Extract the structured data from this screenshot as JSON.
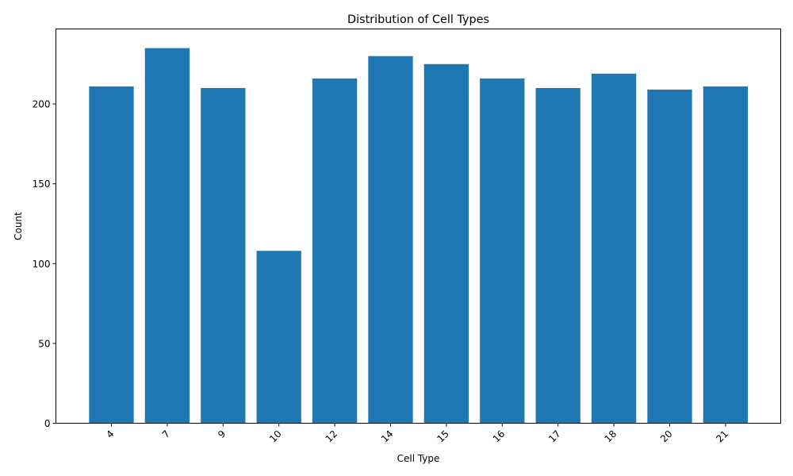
{
  "chart_data": {
    "type": "bar",
    "title": "Distribution of Cell Types",
    "xlabel": "Cell Type",
    "ylabel": "Count",
    "categories": [
      "4",
      "7",
      "9",
      "10",
      "12",
      "14",
      "15",
      "16",
      "17",
      "18",
      "20",
      "21"
    ],
    "values": [
      211,
      235,
      210,
      108,
      216,
      230,
      225,
      216,
      210,
      219,
      209,
      211
    ],
    "ylim": [
      0,
      247
    ],
    "yticks": [
      "0",
      "50",
      "100",
      "150",
      "200"
    ],
    "x_tick_rotation_deg": 45,
    "grid": false,
    "legend": "none",
    "bar_color": "#1f77b4"
  }
}
